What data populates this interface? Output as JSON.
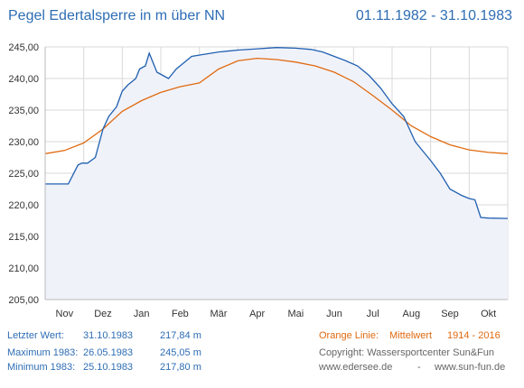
{
  "header": {
    "title": "Pegel Edertalsperre in m über NN",
    "date_range": "01.11.1982 - 31.10.1983"
  },
  "stats": {
    "last": {
      "label": "Letzter Wert:",
      "date": "31.10.1983",
      "value": "217,84 m"
    },
    "max": {
      "label": "Maximum 1983:",
      "date": "26.05.1983",
      "value": "245,05 m"
    },
    "min": {
      "label": "Minimum  1983:",
      "date": "25.10.1983",
      "value": "217,80 m"
    }
  },
  "legend": {
    "orange_label": "Orange Linie:",
    "orange_desc": "Mittelwert",
    "orange_years": "1914 - 2016"
  },
  "credits": {
    "copyright": "Copyright: Wassersportcenter Sun&Fun",
    "site1": "www.edersee.de",
    "separator": "-",
    "site2": "www.sun-fun.de"
  },
  "colors": {
    "actual_line": "#2060b0",
    "mean_line": "#e06a10",
    "fill": "#f0f2fa",
    "grid": "#d9d9d9",
    "axis_text": "#333333"
  },
  "chart_data": {
    "type": "line",
    "x_unit": "month",
    "categories": [
      "Nov",
      "Dez",
      "Jan",
      "Feb",
      "Mär",
      "Apr",
      "Mai",
      "Jun",
      "Jul",
      "Aug",
      "Sep",
      "Okt"
    ],
    "ylim": [
      205,
      245
    ],
    "yticks": [
      "205,00",
      "210,00",
      "215,00",
      "220,00",
      "225,00",
      "230,00",
      "235,00",
      "240,00",
      "245,00"
    ],
    "grid": true,
    "series": [
      {
        "key": "actual",
        "x": [
          0,
          0.3,
          0.6,
          0.85,
          0.95,
          1.1,
          1.3,
          1.5,
          1.65,
          1.85,
          2.0,
          2.15,
          2.35,
          2.45,
          2.6,
          2.7,
          2.9,
          3.05,
          3.2,
          3.4,
          3.6,
          3.8,
          4.1,
          4.5,
          5.0,
          5.5,
          6.0,
          6.5,
          6.9,
          7.2,
          7.5,
          7.8,
          8.1,
          8.4,
          8.7,
          9.0,
          9.3,
          9.6,
          9.8,
          10.0,
          10.25,
          10.5,
          10.8,
          11.0,
          11.15,
          11.3,
          11.5,
          12.0
        ],
        "y": [
          223.3,
          223.3,
          223.3,
          226.3,
          226.6,
          226.6,
          227.5,
          232.0,
          234.0,
          235.5,
          238.0,
          239.0,
          240.0,
          241.5,
          242.0,
          244.0,
          241.0,
          240.5,
          240.0,
          241.5,
          242.5,
          243.5,
          243.8,
          244.2,
          244.5,
          244.7,
          244.9,
          244.8,
          244.6,
          244.2,
          243.5,
          242.8,
          242.0,
          240.5,
          238.5,
          236.0,
          234.0,
          230.0,
          228.5,
          227.0,
          225.0,
          222.5,
          221.5,
          221.0,
          220.8,
          218.0,
          217.9,
          217.84
        ]
      },
      {
        "key": "mean",
        "x": [
          0,
          0.5,
          1.0,
          1.5,
          2.0,
          2.5,
          3.0,
          3.5,
          4.0,
          4.5,
          5.0,
          5.5,
          6.0,
          6.5,
          7.0,
          7.5,
          8.0,
          8.5,
          9.0,
          9.5,
          10.0,
          10.5,
          11.0,
          11.5,
          12.0
        ],
        "y": [
          228.1,
          228.6,
          229.8,
          232.0,
          234.8,
          236.5,
          237.8,
          238.7,
          239.3,
          241.5,
          242.8,
          243.2,
          243.0,
          242.6,
          242.0,
          241.0,
          239.5,
          237.3,
          235.0,
          232.5,
          230.8,
          229.5,
          228.7,
          228.3,
          228.1
        ]
      }
    ]
  }
}
